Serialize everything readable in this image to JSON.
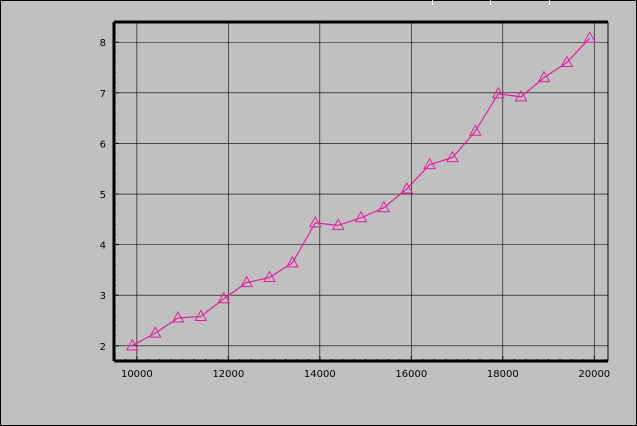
{
  "chart_data": {
    "type": "line",
    "title": "",
    "xlabel": "",
    "ylabel": "",
    "xlim": [
      9500,
      20300
    ],
    "ylim": [
      1.7,
      8.4
    ],
    "grid": true,
    "x_ticks": [
      10000,
      12000,
      14000,
      16000,
      18000,
      20000
    ],
    "y_ticks": [
      2,
      3,
      4,
      5,
      6,
      7,
      8
    ],
    "x_tick_labels": [
      "10000",
      "12000",
      "14000",
      "16000",
      "18000",
      "20000"
    ],
    "y_tick_labels": [
      "2",
      "3",
      "4",
      "5",
      "6",
      "7",
      "8"
    ],
    "series": [
      {
        "color": "#e020a0",
        "marker": "triangle",
        "x": [
          9900,
          10400,
          10900,
          11400,
          11900,
          12400,
          12900,
          13400,
          13900,
          14400,
          14900,
          15400,
          15900,
          16400,
          16900,
          17400,
          17900,
          18400,
          18900,
          19400,
          19900
        ],
        "y": [
          2.0,
          2.25,
          2.55,
          2.58,
          2.93,
          3.25,
          3.35,
          3.64,
          4.43,
          4.38,
          4.53,
          4.73,
          5.1,
          5.58,
          5.72,
          6.24,
          6.98,
          6.92,
          7.3,
          7.6,
          8.08
        ]
      }
    ],
    "colors": {
      "background": "#c0c0c0",
      "plot_area": "#c0c0c0",
      "grid": "#000000",
      "line": "#e020a0"
    }
  }
}
